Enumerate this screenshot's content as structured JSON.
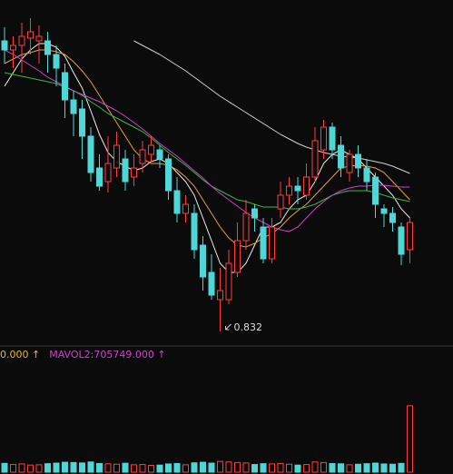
{
  "chart_data": [
    {
      "type": "candlestick",
      "ylim": [
        0.817,
        1.197
      ],
      "up_color": "#ff3d3d",
      "down_color": "#4fd6d6",
      "open": [
        1.152,
        1.142,
        1.147,
        1.155,
        1.152,
        1.152,
        1.137,
        1.117,
        1.087,
        1.077,
        1.047,
        1.012,
        0.997,
        1.012,
        1.022,
        1.002,
        1.017,
        1.027,
        1.032,
        1.022,
        0.987,
        0.962,
        0.962,
        0.927,
        0.897,
        0.867,
        0.867,
        0.897,
        0.932,
        0.967,
        0.947,
        0.912,
        0.967,
        0.982,
        0.992,
        0.982,
        1.002,
        1.032,
        1.057,
        1.037,
        1.007,
        1.027,
        1.012,
        1.002,
        0.967,
        0.962,
        0.947,
        0.922
      ],
      "high": [
        1.167,
        1.157,
        1.172,
        1.177,
        1.169,
        1.162,
        1.147,
        1.127,
        1.097,
        1.087,
        1.057,
        1.027,
        1.047,
        1.052,
        1.032,
        1.027,
        1.042,
        1.047,
        1.037,
        1.027,
        1.002,
        0.982,
        0.972,
        0.937,
        0.917,
        0.902,
        0.922,
        0.952,
        0.977,
        0.972,
        0.957,
        0.957,
        0.997,
        1.002,
        1.002,
        1.017,
        1.057,
        1.065,
        1.062,
        1.047,
        1.032,
        1.037,
        1.022,
        1.007,
        0.972,
        0.969,
        0.952,
        0.957
      ],
      "low": [
        1.127,
        1.122,
        1.117,
        1.137,
        1.127,
        1.117,
        1.102,
        1.067,
        1.047,
        1.022,
        0.997,
        0.987,
        0.985,
        1.002,
        0.987,
        0.992,
        1.007,
        1.017,
        1.012,
        0.977,
        0.952,
        0.952,
        0.912,
        0.877,
        0.867,
        0.832,
        0.862,
        0.892,
        0.922,
        0.942,
        0.907,
        0.907,
        0.957,
        0.972,
        0.972,
        0.977,
        0.997,
        1.022,
        1.022,
        1.002,
        0.997,
        1.002,
        0.987,
        0.957,
        0.947,
        0.942,
        0.905,
        0.907
      ],
      "close": [
        1.142,
        1.147,
        1.157,
        1.162,
        1.157,
        1.137,
        1.122,
        1.087,
        1.072,
        1.047,
        1.007,
        0.992,
        1.017,
        1.037,
        0.997,
        1.012,
        1.032,
        1.037,
        1.022,
        0.987,
        0.962,
        0.972,
        0.922,
        0.892,
        0.872,
        0.877,
        0.907,
        0.932,
        0.962,
        0.957,
        0.912,
        0.947,
        0.982,
        0.992,
        0.987,
        1.002,
        1.042,
        1.057,
        1.032,
        1.012,
        1.027,
        1.012,
        0.997,
        0.972,
        0.962,
        0.952,
        0.917,
        0.952
      ],
      "series": [
        {
          "color": "#eeeeee",
          "values": [
            1.102,
            1.117,
            1.132,
            1.142,
            1.149,
            1.149,
            1.145,
            1.135,
            1.117,
            1.1,
            1.075,
            1.049,
            1.029,
            1.019,
            1.014,
            1.009,
            1.012,
            1.019,
            1.022,
            1.017,
            1.007,
            0.997,
            0.982,
            0.957,
            0.932,
            0.907,
            0.897,
            0.897,
            0.907,
            0.927,
            0.947,
            0.947,
            0.952,
            0.967,
            0.977,
            0.982,
            0.997,
            1.017,
            1.027,
            1.032,
            1.027,
            1.022,
            1.012,
            1.002,
            0.992,
            0.982,
            0.967,
            0.957
          ]
        },
        {
          "color": "#e8a040",
          "values": [
            1.127,
            1.132,
            1.137,
            1.139,
            1.142,
            1.142,
            1.14,
            1.137,
            1.129,
            1.119,
            1.107,
            1.092,
            1.077,
            1.062,
            1.047,
            1.032,
            1.022,
            1.017,
            1.017,
            1.015,
            1.01,
            1.002,
            0.992,
            0.977,
            0.962,
            0.947,
            0.935,
            0.927,
            0.925,
            0.929,
            0.935,
            0.94,
            0.947,
            0.957,
            0.965,
            0.972,
            0.982,
            0.992,
            1.002,
            1.012,
            1.014,
            1.015,
            1.014,
            1.012,
            1.007,
            0.997,
            0.987,
            0.977
          ]
        },
        {
          "color": "#3cb83c",
          "values": [
            1.117,
            1.115,
            1.113,
            1.111,
            1.109,
            1.107,
            1.105,
            1.101,
            1.097,
            1.092,
            1.085,
            1.079,
            1.072,
            1.067,
            1.062,
            1.057,
            1.052,
            1.045,
            1.037,
            1.029,
            1.022,
            1.015,
            1.007,
            0.999,
            0.992,
            0.987,
            0.982,
            0.977,
            0.975,
            0.972,
            0.969,
            0.969,
            0.969,
            0.967,
            0.967,
            0.969,
            0.972,
            0.977,
            0.982,
            0.985,
            0.987,
            0.987,
            0.987,
            0.985,
            0.982,
            0.979,
            0.977,
            0.975
          ]
        },
        {
          "color": "#d040d0",
          "values": [
            1.142,
            1.137,
            1.131,
            1.125,
            1.119,
            1.112,
            1.107,
            1.102,
            1.097,
            1.093,
            1.089,
            1.085,
            1.08,
            1.075,
            1.069,
            1.062,
            1.055,
            1.047,
            1.039,
            1.032,
            1.025,
            1.017,
            1.009,
            1.001,
            0.992,
            0.984,
            0.977,
            0.97,
            0.963,
            0.957,
            0.952,
            0.947,
            0.944,
            0.942,
            0.947,
            0.957,
            0.967,
            0.975,
            0.982,
            0.987,
            0.99,
            0.992,
            0.992,
            0.993,
            0.993,
            0.992,
            0.991,
            0.991
          ]
        },
        {
          "color": "#d8d0c8",
          "values": [
            null,
            null,
            null,
            null,
            null,
            null,
            null,
            null,
            null,
            null,
            null,
            null,
            null,
            null,
            null,
            1.152,
            1.147,
            1.142,
            1.137,
            1.131,
            1.125,
            1.119,
            1.112,
            1.105,
            1.098,
            1.091,
            1.085,
            1.079,
            1.073,
            1.067,
            1.061,
            1.055,
            1.049,
            1.044,
            1.039,
            1.035,
            1.032,
            1.029,
            1.027,
            1.025,
            1.024,
            1.023,
            1.021,
            1.019,
            1.017,
            1.014,
            1.01,
            1.006
          ]
        }
      ]
    },
    {
      "type": "bar",
      "ylim": [
        0,
        8000000
      ],
      "texts": [
        {
          "text": "0.000 ↑",
          "color": "#e8b830"
        },
        {
          "text": "MAVOL2:705749.000 ↑",
          "color": "#d040d0"
        }
      ],
      "values": [
        620000,
        540000,
        580000,
        500000,
        520000,
        600000,
        640000,
        700000,
        680000,
        650000,
        720000,
        610000,
        590000,
        560000,
        630000,
        520000,
        540000,
        480000,
        500000,
        580000,
        610000,
        520000,
        660000,
        700000,
        640000,
        760000,
        720000,
        680000,
        650000,
        540000,
        600000,
        580000,
        620000,
        560000,
        500000,
        540000,
        720000,
        680000,
        610000,
        590000,
        520000,
        560000,
        600000,
        640000,
        580000,
        560000,
        620000,
        4680000
      ]
    }
  ]
}
